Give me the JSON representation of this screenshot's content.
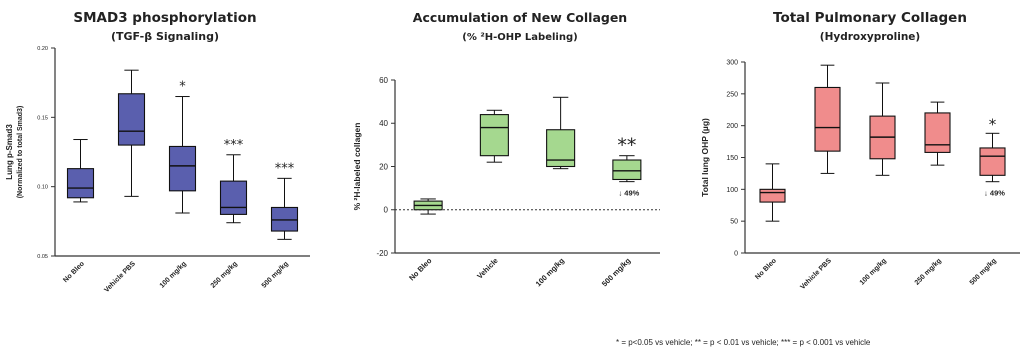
{
  "chart_data": [
    {
      "type": "boxplot",
      "title": "SMAD3 phosphorylation",
      "subtitle": "(TGF-β Signaling)",
      "ylabel_line1": "Lung p-Smad3",
      "ylabel_line2": "(Normalized to total Smad3)",
      "ylim": [
        0.05,
        0.2
      ],
      "yticks": [
        "0.05",
        "0.10",
        "0.15",
        "0.20"
      ],
      "box_color": "#5a5fae",
      "categories": [
        "No Bleo",
        "Vehicle PBS",
        "100 mg/kg",
        "250 mg/kg",
        "500 mg/kg"
      ],
      "boxes": [
        {
          "min": 0.089,
          "q1": 0.092,
          "median": 0.099,
          "q3": 0.113,
          "max": 0.134
        },
        {
          "min": 0.093,
          "q1": 0.13,
          "median": 0.14,
          "q3": 0.167,
          "max": 0.184
        },
        {
          "min": 0.081,
          "q1": 0.097,
          "median": 0.115,
          "q3": 0.129,
          "max": 0.165
        },
        {
          "min": 0.074,
          "q1": 0.08,
          "median": 0.085,
          "q3": 0.104,
          "max": 0.123
        },
        {
          "min": 0.062,
          "q1": 0.068,
          "median": 0.076,
          "q3": 0.085,
          "max": 0.106
        }
      ],
      "significance": [
        "",
        "",
        "*",
        "***",
        "***"
      ]
    },
    {
      "type": "boxplot",
      "title": "Accumulation of New Collagen",
      "subtitle": "(% ²H-OHP Labeling)",
      "ylabel": "% ²H-labeled collagen",
      "ylim": [
        -20,
        60
      ],
      "yticks": [
        "-20",
        "0",
        "20",
        "40",
        "60"
      ],
      "zero_line": "dotted",
      "box_color": "#a5d88f",
      "categories": [
        "No Bleo",
        "Vehicle",
        "100 mg/kg",
        "500 mg/kg"
      ],
      "boxes": [
        {
          "min": -2,
          "q1": 0,
          "median": 2,
          "q3": 4,
          "max": 5
        },
        {
          "min": 22,
          "q1": 25,
          "median": 38,
          "q3": 44,
          "max": 46
        },
        {
          "min": 19,
          "q1": 20,
          "median": 23,
          "q3": 37,
          "max": 52
        },
        {
          "min": 13,
          "q1": 14,
          "median": 18,
          "q3": 23,
          "max": 25
        }
      ],
      "significance": [
        "",
        "",
        "",
        "**"
      ],
      "annotations": [
        "",
        "",
        "",
        "↓ 49%"
      ]
    },
    {
      "type": "boxplot",
      "title": "Total Pulmonary Collagen",
      "subtitle": "(Hydroxyproline)",
      "ylabel": "Total lung OHP (µg)",
      "ylim": [
        0,
        300
      ],
      "yticks": [
        "0",
        "50",
        "100",
        "150",
        "200",
        "250",
        "300"
      ],
      "box_color": "#f08c8c",
      "categories": [
        "No Bleo",
        "Vehicle PBS",
        "100 mg/kg",
        "250 mg/kg",
        "500 mg/kg"
      ],
      "boxes": [
        {
          "min": 50,
          "q1": 80,
          "median": 95,
          "q3": 100,
          "max": 140
        },
        {
          "min": 125,
          "q1": 160,
          "median": 197,
          "q3": 260,
          "max": 295
        },
        {
          "min": 122,
          "q1": 148,
          "median": 182,
          "q3": 215,
          "max": 267
        },
        {
          "min": 138,
          "q1": 158,
          "median": 170,
          "q3": 220,
          "max": 237
        },
        {
          "min": 112,
          "q1": 122,
          "median": 152,
          "q3": 165,
          "max": 188
        }
      ],
      "significance": [
        "",
        "",
        "",
        "",
        "*"
      ],
      "annotations": [
        "",
        "",
        "",
        "",
        "↓ 49%"
      ]
    }
  ],
  "footnote": "* = p<0.05 vs vehicle; ** = p < 0.01 vs vehicle; *** = p < 0.001 vs vehicle"
}
